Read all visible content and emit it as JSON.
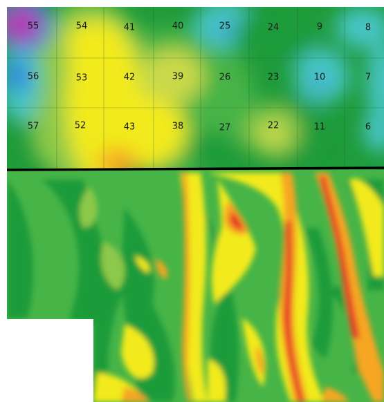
{
  "palette": {
    "purple": "#b03fb2",
    "blue": "#2f7fe0",
    "cyan": "#47c4c4",
    "dark_green": "#1f9b3a",
    "green": "#47b447",
    "light_green": "#8cc84a",
    "yellow_green": "#c9d94a",
    "yellow": "#f2ea1a",
    "orange": "#f6a623",
    "red": "#e53525",
    "divider": "#000000",
    "grid": "#1f5a2c"
  },
  "top_grid": {
    "rows": [
      [
        "55",
        "54",
        "41",
        "40",
        "25",
        "24",
        "9",
        "8"
      ],
      [
        "56",
        "53",
        "42",
        "39",
        "26",
        "23",
        "10",
        "7"
      ],
      [
        "57",
        "52",
        "43",
        "38",
        "27",
        "22",
        "11",
        "6"
      ]
    ]
  },
  "bottom_map": {
    "description_icon": "yield-heatmap"
  }
}
